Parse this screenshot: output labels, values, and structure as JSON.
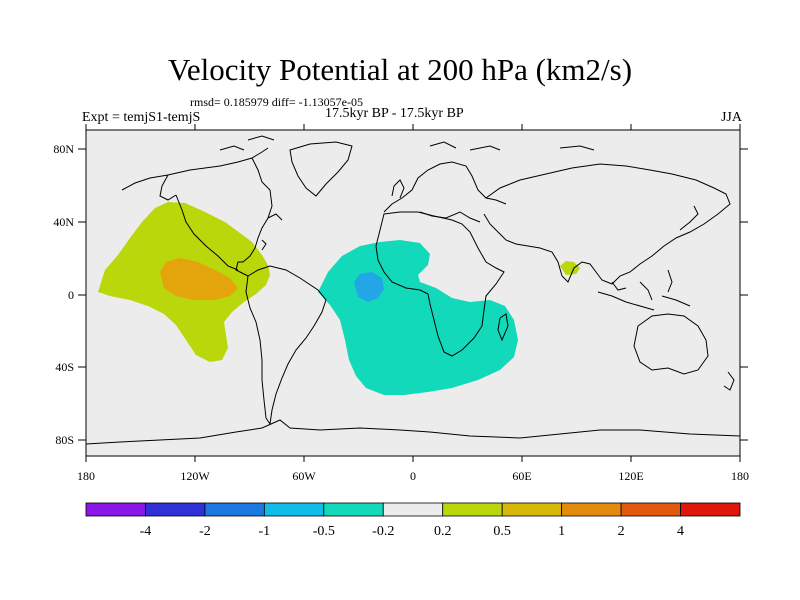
{
  "figure": {
    "title": "Velocity Potential at 200 hPa (km2/s)",
    "stats": "rmsd= 0.185979 diff= -1.13057e-05",
    "experiment": "Expt = temjS1-temjS",
    "period": "17.5kyr BP - 17.5kyr BP",
    "season": "JJA"
  },
  "map": {
    "projection": "cylindrical-equidistant",
    "lon_range": [
      -180,
      180
    ],
    "lat_range": [
      -90,
      90
    ],
    "background_color": "#ececec",
    "lat_labels": [
      "80N",
      "40N",
      "0",
      "40S",
      "80S"
    ],
    "lon_labels": [
      "180",
      "120W",
      "60W",
      "0",
      "60E",
      "120E",
      "180"
    ],
    "anomaly_regions": [
      {
        "name": "East Pacific positive",
        "level": "0.2 to 0.5",
        "color": "#b9d70a"
      },
      {
        "name": "East Pacific core",
        "level": "0.5 to 1",
        "color": "#e3a40c"
      },
      {
        "name": "Atlantic / Africa negative",
        "level": "-0.5 to -0.2",
        "color": "#12d9b9"
      },
      {
        "name": "Tropical Atlantic core",
        "level": "-1 to -0.5",
        "color": "#22a6e6"
      },
      {
        "name": "Bay of Bengal positive",
        "level": "0.2 to 0.5",
        "color": "#b9d70a"
      }
    ]
  },
  "colorbar": {
    "colors": [
      "#8a17e8",
      "#3030d8",
      "#1b78e0",
      "#12bce8",
      "#12d9b9",
      "#ececec",
      "#b9d70a",
      "#d7b80a",
      "#e28b0c",
      "#e0590c",
      "#e0150c"
    ],
    "labels": [
      "-4",
      "-2",
      "-1",
      "-0.5",
      "-0.2",
      "0.2",
      "0.5",
      "1",
      "2",
      "4"
    ]
  }
}
